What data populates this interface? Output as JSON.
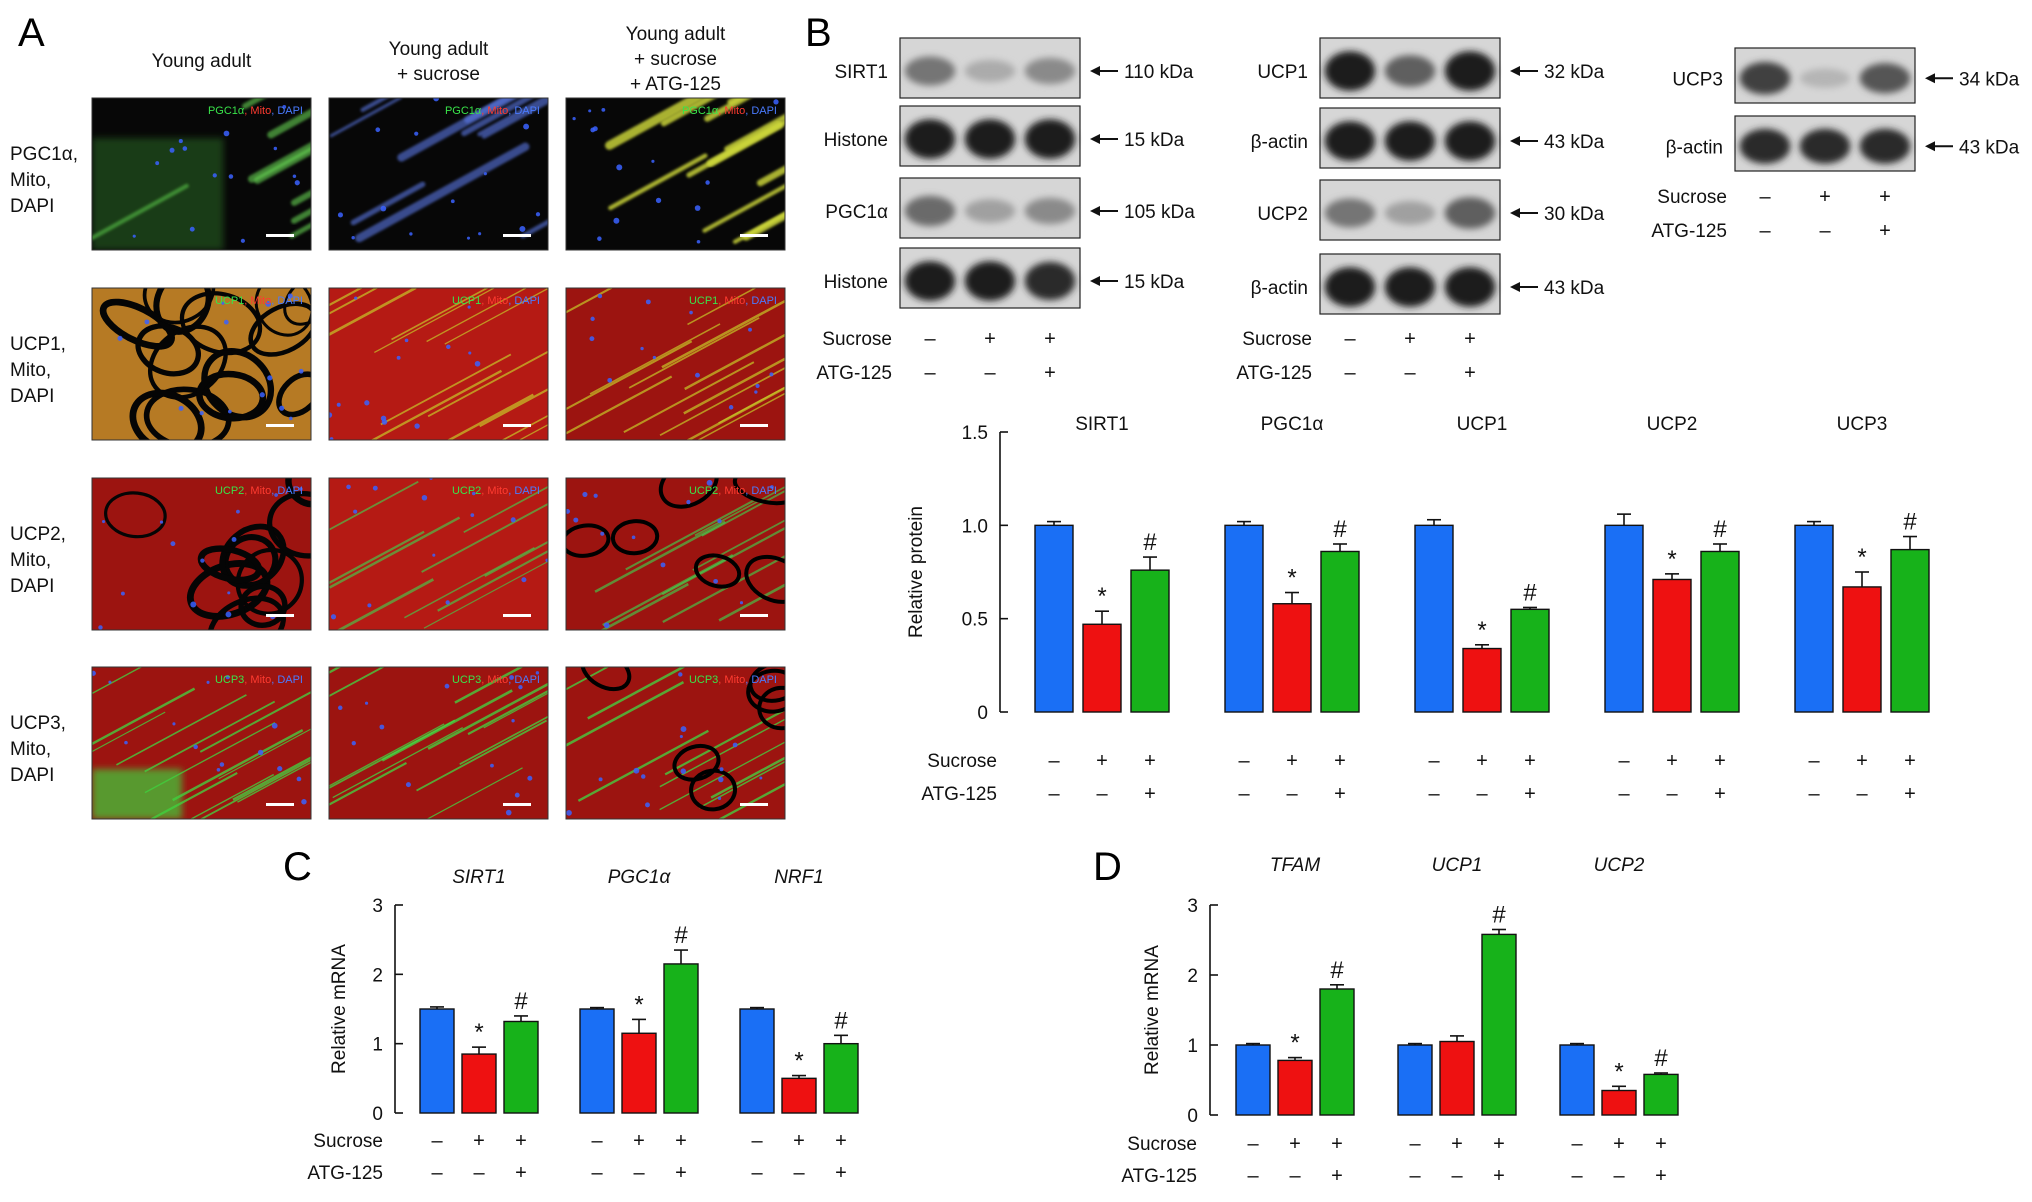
{
  "colors": {
    "control": "#1a6ff5",
    "sucrose": "#ee1111",
    "atg125": "#17b21a",
    "bg": "#ffffff",
    "ink": "#111111"
  },
  "panel_labels": [
    "A",
    "B",
    "C",
    "D"
  ],
  "panelA": {
    "columns": [
      "Young adult",
      "Young adult\n+ sucrose",
      "Young adult\n+ sucrose\n+ ATG-125"
    ],
    "rows": [
      {
        "label": "PGC1α,\nMito,\nDAPI",
        "stain": [
          "PGC1α",
          "Mito",
          "DAPI"
        ],
        "style": "pgc"
      },
      {
        "label": "UCP1,\nMito,\nDAPI",
        "stain": [
          "UCP1",
          "Mito",
          "DAPI"
        ],
        "style": "ucp1"
      },
      {
        "label": "UCP2,\nMito,\nDAPI",
        "stain": [
          "UCP2",
          "Mito",
          "DAPI"
        ],
        "style": "ucp2"
      },
      {
        "label": "UCP3,\nMito,\nDAPI",
        "stain": [
          "UCP3",
          "Mito",
          "DAPI"
        ],
        "style": "ucp3"
      }
    ]
  },
  "panelB_blots": {
    "group1": [
      {
        "name": "SIRT1",
        "kda": "110 kDa",
        "bands": [
          0.55,
          0.3,
          0.45
        ]
      },
      {
        "name": "Histone",
        "kda": "15 kDa",
        "bands": [
          0.95,
          0.95,
          0.95
        ]
      },
      {
        "name": "PGC1α",
        "kda": "105 kDa",
        "bands": [
          0.6,
          0.35,
          0.45
        ]
      },
      {
        "name": "Histone",
        "kda": "15 kDa",
        "bands": [
          0.95,
          0.95,
          0.9
        ]
      }
    ],
    "group2": [
      {
        "name": "UCP1",
        "kda": "32 kDa",
        "bands": [
          0.95,
          0.65,
          0.95
        ]
      },
      {
        "name": "β-actin",
        "kda": "43 kDa",
        "bands": [
          0.95,
          0.95,
          0.95
        ]
      },
      {
        "name": "UCP2",
        "kda": "30 kDa",
        "bands": [
          0.55,
          0.35,
          0.65
        ]
      },
      {
        "name": "β-actin",
        "kda": "43 kDa",
        "bands": [
          0.95,
          0.95,
          0.95
        ]
      }
    ],
    "group3": [
      {
        "name": "UCP3",
        "kda": "34 kDa",
        "bands": [
          0.8,
          0.25,
          0.7
        ]
      },
      {
        "name": "β-actin",
        "kda": "43 kDa",
        "bands": [
          0.9,
          0.9,
          0.9
        ]
      }
    ]
  },
  "treatments": {
    "sucrose_label": "Sucrose",
    "atg_label": "ATG-125",
    "sucrose": [
      "–",
      "+",
      "+"
    ],
    "atg": [
      "–",
      "–",
      "+"
    ]
  },
  "chart_data": [
    {
      "id": "B",
      "type": "bar",
      "ylabel": "Relative protein",
      "ylim": [
        0,
        1.5
      ],
      "yticks": [
        "0",
        "0.5",
        "1.0",
        "1.5"
      ],
      "ytick_values": [
        0,
        0.5,
        1.0,
        1.5
      ],
      "categories": [
        "SIRT1",
        "PGC1α",
        "UCP1",
        "UCP2",
        "UCP3"
      ],
      "series": [
        {
          "values": [
            1.0,
            1.0,
            1.0,
            1.0,
            1.0
          ],
          "errors": [
            0.02,
            0.02,
            0.03,
            0.06,
            0.02
          ],
          "marks": [
            "",
            "",
            "",
            "",
            ""
          ]
        },
        {
          "values": [
            0.47,
            0.58,
            0.34,
            0.71,
            0.67
          ],
          "errors": [
            0.07,
            0.06,
            0.02,
            0.03,
            0.08
          ],
          "marks": [
            "*",
            "*",
            "*",
            "*",
            "*"
          ]
        },
        {
          "values": [
            0.76,
            0.86,
            0.55,
            0.86,
            0.87
          ],
          "errors": [
            0.07,
            0.04,
            0.01,
            0.04,
            0.07
          ],
          "marks": [
            "#",
            "#",
            "#",
            "#",
            "#"
          ]
        }
      ]
    },
    {
      "id": "C",
      "type": "bar",
      "ylabel": "Relative mRNA",
      "ylim": [
        0,
        3
      ],
      "yticks": [
        "0",
        "1",
        "2",
        "3"
      ],
      "ytick_values": [
        0,
        1,
        2,
        3
      ],
      "categories": [
        "SIRT1",
        "PGC1α",
        "NRF1"
      ],
      "series": [
        {
          "values": [
            1.5,
            1.5,
            1.5
          ],
          "errors": [
            0.03,
            0.02,
            0.02
          ],
          "marks": [
            "",
            "",
            ""
          ]
        },
        {
          "values": [
            0.85,
            1.15,
            0.5
          ],
          "errors": [
            0.1,
            0.2,
            0.04
          ],
          "marks": [
            "*",
            "*",
            "*"
          ]
        },
        {
          "values": [
            1.32,
            2.15,
            1.0
          ],
          "errors": [
            0.08,
            0.2,
            0.12
          ],
          "marks": [
            "#",
            "#",
            "#"
          ]
        }
      ]
    },
    {
      "id": "D",
      "type": "bar",
      "ylabel": "Relative mRNA",
      "ylim": [
        0,
        3
      ],
      "yticks": [
        "0",
        "1",
        "2",
        "3"
      ],
      "ytick_values": [
        0,
        1,
        2,
        3
      ],
      "categories": [
        "TFAM",
        "UCP1",
        "UCP2"
      ],
      "series": [
        {
          "values": [
            1.0,
            1.0,
            1.0
          ],
          "errors": [
            0.02,
            0.02,
            0.02
          ],
          "marks": [
            "",
            "",
            ""
          ]
        },
        {
          "values": [
            0.78,
            1.05,
            0.35
          ],
          "errors": [
            0.04,
            0.08,
            0.06
          ],
          "marks": [
            "*",
            "",
            "*"
          ]
        },
        {
          "values": [
            1.8,
            2.58,
            0.58
          ],
          "errors": [
            0.06,
            0.07,
            0.02
          ],
          "marks": [
            "#",
            "#",
            "#"
          ]
        }
      ]
    }
  ]
}
